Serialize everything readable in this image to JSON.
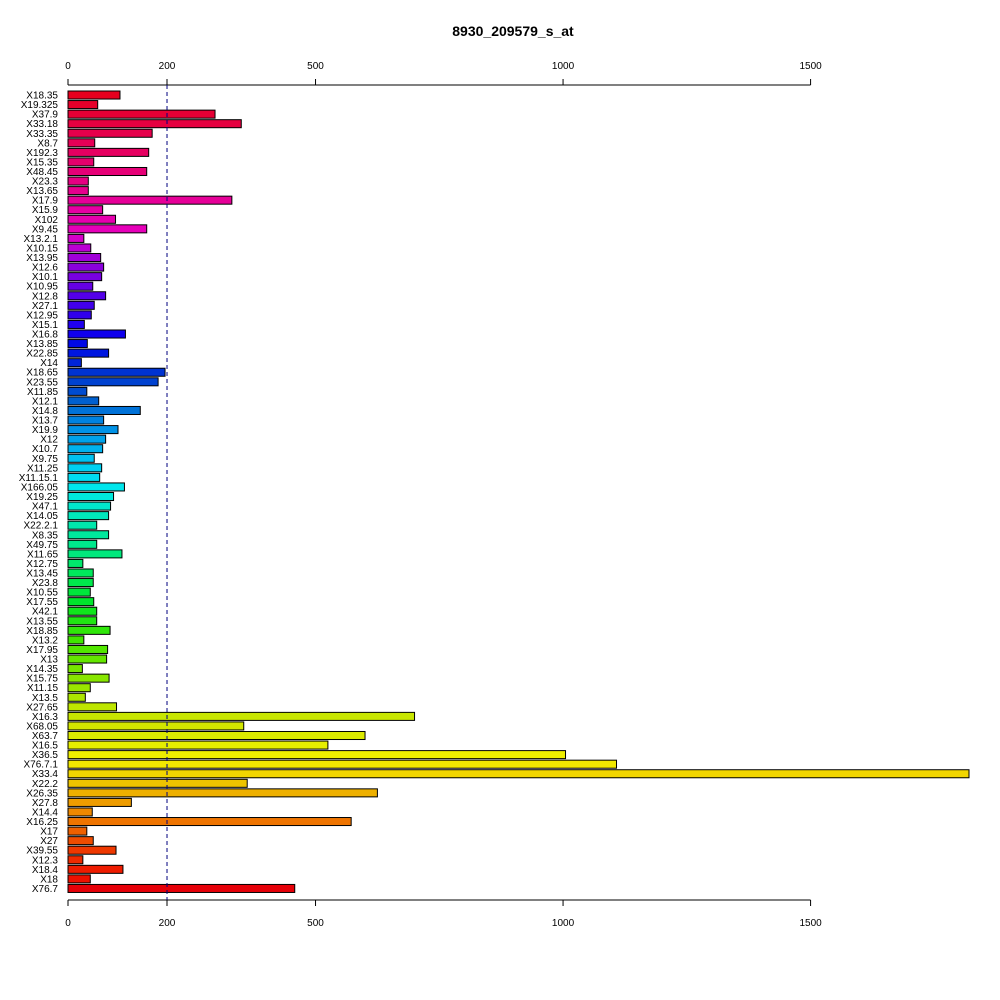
{
  "chart_data": {
    "type": "bar",
    "orientation": "horizontal",
    "title": "8930_209579_s_at",
    "xlabel": "",
    "ylabel": "",
    "xlim": [
      0,
      1820
    ],
    "xticks": [
      0,
      200,
      500,
      1000,
      1500
    ],
    "xtick_labels": [
      "0",
      "200",
      "500",
      "1000",
      "1500"
    ],
    "axis_top": true,
    "axis_bottom": true,
    "grid": false,
    "reference_line": {
      "value": 200,
      "style": "dashed",
      "color": "#000080"
    },
    "categories": [
      "X18.35",
      "X19.325",
      "X37.9",
      "X33.18",
      "X33.35",
      "X8.7",
      "X192.3",
      "X15.35",
      "X48.45",
      "X23.3",
      "X13.65",
      "X17.9",
      "X15.9",
      "X102",
      "X9.45",
      "X13.2.1",
      "X10.15",
      "X13.95",
      "X12.6",
      "X10.1",
      "X10.95",
      "X12.8",
      "X27.1",
      "X12.95",
      "X15.1",
      "X16.8",
      "X13.85",
      "X22.85",
      "X14",
      "X18.65",
      "X23.55",
      "X11.85",
      "X12.1",
      "X14.8",
      "X13.7",
      "X19.9",
      "X12",
      "X10.7",
      "X9.75",
      "X11.25",
      "X11.15.1",
      "X166.05",
      "X19.25",
      "X47.1",
      "X14.05",
      "X22.2.1",
      "X8.35",
      "X49.75",
      "X11.65",
      "X12.75",
      "X13.45",
      "X23.8",
      "X10.55",
      "X17.55",
      "X42.1",
      "X13.55",
      "X18.85",
      "X13.2",
      "X17.95",
      "X13",
      "X14.35",
      "X15.75",
      "X11.15",
      "X13.5",
      "X27.65",
      "X16.3",
      "X68.05",
      "X63.7",
      "X16.5",
      "X36.5",
      "X76.7.1",
      "X33.4",
      "X22.2",
      "X26.35",
      "X27.8",
      "X14.4",
      "X16.25",
      "X17",
      "X27",
      "X39.55",
      "X12.3",
      "X18.4",
      "X18",
      "X76.7"
    ],
    "values": [
      105,
      60,
      297,
      350,
      170,
      54,
      163,
      52,
      159,
      41,
      41,
      331,
      70,
      96,
      159,
      32,
      46,
      66,
      72,
      68,
      50,
      76,
      53,
      47,
      33,
      116,
      39,
      82,
      27,
      196,
      182,
      38,
      62,
      146,
      72,
      101,
      76,
      70,
      53,
      68,
      64,
      114,
      92,
      86,
      82,
      58,
      82,
      58,
      109,
      30,
      51,
      51,
      45,
      52,
      58,
      58,
      85,
      32,
      80,
      78,
      29,
      83,
      45,
      35,
      98,
      700,
      355,
      600,
      525,
      1005,
      1108,
      1820,
      362,
      625,
      128,
      49,
      572,
      38,
      51,
      97,
      30,
      111,
      45,
      458
    ],
    "colors": [
      "#E6001E",
      "#E6002A",
      "#E60035",
      "#E60040",
      "#E6004B",
      "#E60056",
      "#E60061",
      "#E6006C",
      "#E60077",
      "#E60082",
      "#E6008D",
      "#E60098",
      "#E600A3",
      "#E600AE",
      "#E600B9",
      "#D400C8",
      "#BA00D2",
      "#A000D8",
      "#8A00DC",
      "#7800E0",
      "#6600E4",
      "#5400E8",
      "#4200EA",
      "#3000EC",
      "#2000EE",
      "#1000EE",
      "#0008E6",
      "#0016E0",
      "#0024D8",
      "#0033D2",
      "#0042D0",
      "#004CD0",
      "#0060D0",
      "#0072D8",
      "#0082E0",
      "#0092E6",
      "#00A2EA",
      "#00B2EE",
      "#00C2F0",
      "#00D0F2",
      "#00DCF2",
      "#00E6EC",
      "#00E8DC",
      "#00E8CC",
      "#00E8BC",
      "#00E8AC",
      "#00E89C",
      "#00E88C",
      "#00E87C",
      "#00E86C",
      "#00E85C",
      "#00E84C",
      "#00E63C",
      "#00E62C",
      "#10E61C",
      "#20E612",
      "#30E60A",
      "#40E600",
      "#52E600",
      "#64E600",
      "#76E600",
      "#88E600",
      "#9AE600",
      "#ACE600",
      "#BEE600",
      "#C8E600",
      "#D2E600",
      "#DCEA00",
      "#E6EE00",
      "#EEEE00",
      "#F2E800",
      "#F2D600",
      "#EEC400",
      "#EEB000",
      "#EE9C00",
      "#EE8800",
      "#EE7400",
      "#EE6000",
      "#EE4C00",
      "#EE3800",
      "#EE2A00",
      "#EE1C00",
      "#EE1000",
      "#E60008"
    ]
  }
}
